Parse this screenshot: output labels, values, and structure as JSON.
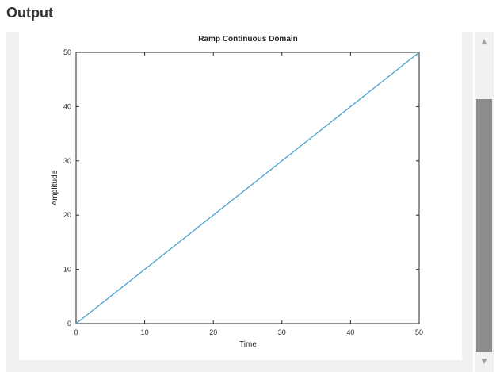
{
  "output": {
    "heading": "Output"
  },
  "scrollbar": {
    "up_icon": "triangle-up-icon",
    "down_icon": "triangle-down-icon"
  },
  "chart_data": {
    "type": "line",
    "title": "Ramp Continuous Domain",
    "xlabel": "Time",
    "ylabel": "Amplitude",
    "xlim": [
      0,
      50
    ],
    "ylim": [
      0,
      50
    ],
    "xticks": [
      0,
      10,
      20,
      30,
      40,
      50
    ],
    "yticks": [
      0,
      10,
      20,
      30,
      40,
      50
    ],
    "grid": false,
    "line_color": "#4a9fd4",
    "series": [
      {
        "x": [
          0,
          50
        ],
        "y": [
          0,
          50
        ]
      }
    ]
  }
}
